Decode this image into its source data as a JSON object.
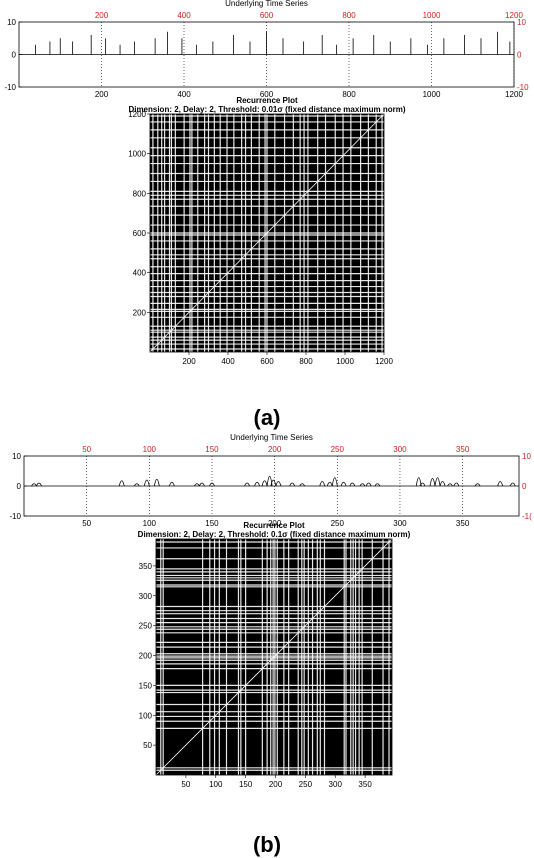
{
  "chart_data": [
    {
      "type": "line",
      "title": "Underlying Time Series",
      "x_ticks": [
        200,
        400,
        600,
        800,
        1000,
        1200
      ],
      "xlim": [
        0,
        1200
      ],
      "y_ticks": [
        -10,
        0,
        10
      ],
      "ylim": [
        -10,
        10
      ],
      "right_y_ticks": [
        "10",
        "0",
        "-10"
      ],
      "grid": "vertical dotted at top ticks",
      "colors": {
        "top_axis": "#cc2222",
        "line": "#000000"
      },
      "series_description_values": [
        {
          "x": 40,
          "y": 3
        },
        {
          "x": 75,
          "y": 4
        },
        {
          "x": 100,
          "y": 5
        },
        {
          "x": 130,
          "y": 4
        },
        {
          "x": 175,
          "y": 6
        },
        {
          "x": 210,
          "y": 5
        },
        {
          "x": 245,
          "y": 3
        },
        {
          "x": 280,
          "y": 4
        },
        {
          "x": 330,
          "y": 5
        },
        {
          "x": 360,
          "y": 7
        },
        {
          "x": 395,
          "y": 5
        },
        {
          "x": 430,
          "y": 3
        },
        {
          "x": 470,
          "y": 4
        },
        {
          "x": 520,
          "y": 6
        },
        {
          "x": 560,
          "y": 4
        },
        {
          "x": 600,
          "y": 7
        },
        {
          "x": 640,
          "y": 5
        },
        {
          "x": 690,
          "y": 4
        },
        {
          "x": 735,
          "y": 6
        },
        {
          "x": 770,
          "y": 3
        },
        {
          "x": 810,
          "y": 5
        },
        {
          "x": 860,
          "y": 6
        },
        {
          "x": 900,
          "y": 4
        },
        {
          "x": 950,
          "y": 5
        },
        {
          "x": 990,
          "y": 3
        },
        {
          "x": 1030,
          "y": 5
        },
        {
          "x": 1080,
          "y": 6
        },
        {
          "x": 1120,
          "y": 5
        },
        {
          "x": 1160,
          "y": 7
        },
        {
          "x": 1190,
          "y": 4
        }
      ]
    },
    {
      "type": "heatmap",
      "title": "Recurrence Plot",
      "subtitle": "Dimension: 2,  Delay: 2,  Threshold: 0.01σ (fixed distance maximum norm)",
      "x_ticks": [
        200,
        400,
        600,
        800,
        1000,
        1200
      ],
      "y_ticks": [
        200,
        400,
        600,
        800,
        1000,
        1200
      ],
      "xlim": [
        0,
        1200
      ],
      "ylim": [
        0,
        1200
      ],
      "colors": {
        "background": "#000000",
        "recurrence": "#ffffff"
      },
      "recurrence_lines_x": [
        15,
        40,
        60,
        75,
        100,
        110,
        130,
        175,
        205,
        215,
        245,
        280,
        300,
        330,
        360,
        395,
        430,
        470,
        490,
        520,
        560,
        590,
        600,
        640,
        690,
        735,
        770,
        790,
        810,
        860,
        900,
        950,
        990,
        1030,
        1080,
        1120,
        1160,
        1190
      ]
    },
    {
      "type": "line",
      "title": "Underlying Time Series",
      "x_ticks": [
        50,
        100,
        150,
        200,
        250,
        300,
        350
      ],
      "xlim": [
        0,
        395
      ],
      "y_ticks": [
        -10,
        0,
        10
      ],
      "ylim": [
        -10,
        10
      ],
      "right_y_ticks": [
        "10",
        "0",
        "-1("
      ],
      "grid": "vertical dotted at top ticks",
      "colors": {
        "top_axis": "#cc2222",
        "line": "#000000"
      },
      "series_values": [
        {
          "x": 8,
          "y": 1.5
        },
        {
          "x": 12,
          "y": 2
        },
        {
          "x": 78,
          "y": 3.5
        },
        {
          "x": 90,
          "y": 1.5
        },
        {
          "x": 98,
          "y": 4
        },
        {
          "x": 106,
          "y": 4.5
        },
        {
          "x": 118,
          "y": 2.5
        },
        {
          "x": 138,
          "y": 1.5
        },
        {
          "x": 142,
          "y": 2
        },
        {
          "x": 150,
          "y": 2
        },
        {
          "x": 178,
          "y": 2
        },
        {
          "x": 186,
          "y": 2.5
        },
        {
          "x": 192,
          "y": 3.5
        },
        {
          "x": 196,
          "y": 6.5
        },
        {
          "x": 199,
          "y": 4
        },
        {
          "x": 203,
          "y": 3
        },
        {
          "x": 214,
          "y": 2
        },
        {
          "x": 222,
          "y": 1.5
        },
        {
          "x": 238,
          "y": 3
        },
        {
          "x": 244,
          "y": 2.5
        },
        {
          "x": 248,
          "y": 5.5
        },
        {
          "x": 255,
          "y": 2.5
        },
        {
          "x": 262,
          "y": 2
        },
        {
          "x": 270,
          "y": 1.5
        },
        {
          "x": 275,
          "y": 2
        },
        {
          "x": 282,
          "y": 1.5
        },
        {
          "x": 315,
          "y": 5.5
        },
        {
          "x": 318,
          "y": 2
        },
        {
          "x": 326,
          "y": 5
        },
        {
          "x": 330,
          "y": 5.5
        },
        {
          "x": 334,
          "y": 3
        },
        {
          "x": 340,
          "y": 1.5
        },
        {
          "x": 345,
          "y": 2
        },
        {
          "x": 362,
          "y": 1.5
        },
        {
          "x": 380,
          "y": 3
        },
        {
          "x": 390,
          "y": 2
        }
      ]
    },
    {
      "type": "heatmap",
      "title": "Recurrence Plot",
      "subtitle": "Dimension: 2,  Delay: 2,  Threshold: 0.1σ (fixed distance maximum norm)",
      "x_ticks": [
        50,
        100,
        150,
        200,
        250,
        300,
        350
      ],
      "y_ticks": [
        50,
        100,
        150,
        200,
        250,
        300,
        350
      ],
      "xlim": [
        0,
        395
      ],
      "ylim": [
        0,
        395
      ],
      "colors": {
        "background": "#000000",
        "recurrence": "#ffffff"
      },
      "recurrence_lines_x": [
        8,
        12,
        78,
        90,
        98,
        106,
        118,
        138,
        142,
        150,
        178,
        186,
        192,
        196,
        199,
        203,
        214,
        222,
        238,
        244,
        248,
        255,
        262,
        270,
        275,
        282,
        315,
        318,
        326,
        330,
        334,
        340,
        345,
        362,
        380,
        390
      ]
    }
  ],
  "labels": {
    "a": "(a)",
    "b": "(b)"
  }
}
